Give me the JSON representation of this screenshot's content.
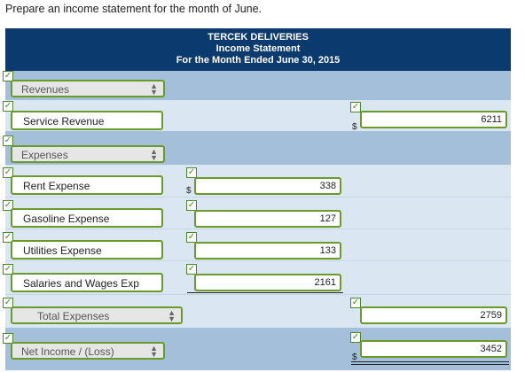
{
  "instruction": "Prepare an income statement for the month of June.",
  "header": {
    "company": "TERCEK DELIVERIES",
    "statement": "Income Statement",
    "period": "For the Month Ended June 30, 2015"
  },
  "rows": {
    "revenues_select": "Revenues",
    "service_revenue": {
      "label": "Service Revenue",
      "currency": "$",
      "amount": "6211"
    },
    "expenses_select": "Expenses",
    "rent": {
      "label": "Rent Expense",
      "currency": "$",
      "amount": "338"
    },
    "gasoline": {
      "label": "Gasoline Expense",
      "amount": "127"
    },
    "utilities": {
      "label": "Utilities Expense",
      "amount": "133"
    },
    "salaries": {
      "label": "Salaries and Wages Exp",
      "amount": "2161"
    },
    "total_select": "Total Expenses",
    "total_amount": "2759",
    "net_select": "Net Income / (Loss)",
    "net_currency": "$",
    "net_amount": "3452"
  },
  "icons": {
    "check": "✓",
    "select_arrows": "▲▼"
  },
  "colors": {
    "header_bg": "#0b3a6e",
    "row_dark": "#a3bfd9",
    "row_light": "#dae6f2",
    "field_border": "#6a9a2a"
  }
}
